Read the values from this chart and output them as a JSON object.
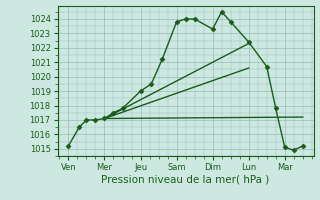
{
  "background_color": "#cce8e0",
  "grid_color": "#99bbbb",
  "line_color": "#1a5c1a",
  "marker_color": "#1a5c1a",
  "xlabel": "Pression niveau de la mer( hPa )",
  "ylim": [
    1014.5,
    1024.9
  ],
  "yticks": [
    1015,
    1016,
    1017,
    1018,
    1019,
    1020,
    1021,
    1022,
    1023,
    1024
  ],
  "x_labels": [
    "Ven",
    "Mer",
    "Jeu",
    "Sam",
    "Dim",
    "Lun",
    "Mar"
  ],
  "x_positions": [
    0,
    1,
    2,
    3,
    4,
    5,
    6
  ],
  "xlim": [
    -0.3,
    6.8
  ],
  "series_main": {
    "x": [
      0.0,
      0.3,
      0.5,
      0.75,
      1.0,
      1.25,
      1.5,
      2.0,
      2.3,
      2.6,
      3.0,
      3.25,
      3.5,
      4.0,
      4.25,
      4.5,
      5.0,
      5.5,
      5.75,
      6.0,
      6.25,
      6.5
    ],
    "y": [
      1015.2,
      1016.5,
      1017.0,
      1017.0,
      1017.1,
      1017.5,
      1017.8,
      1019.0,
      1019.5,
      1021.2,
      1023.8,
      1024.0,
      1024.0,
      1023.3,
      1024.5,
      1023.8,
      1022.4,
      1020.7,
      1017.8,
      1015.1,
      1014.9,
      1015.2
    ]
  },
  "series_lines": [
    {
      "x": [
        1.0,
        6.5
      ],
      "y": [
        1017.1,
        1017.2
      ]
    },
    {
      "x": [
        1.0,
        5.0
      ],
      "y": [
        1017.1,
        1022.3
      ]
    },
    {
      "x": [
        1.0,
        5.0
      ],
      "y": [
        1017.1,
        1020.6
      ]
    }
  ],
  "xlabel_fontsize": 7.5,
  "tick_fontsize": 6.0,
  "linewidth": 1.0,
  "markersize": 2.5
}
